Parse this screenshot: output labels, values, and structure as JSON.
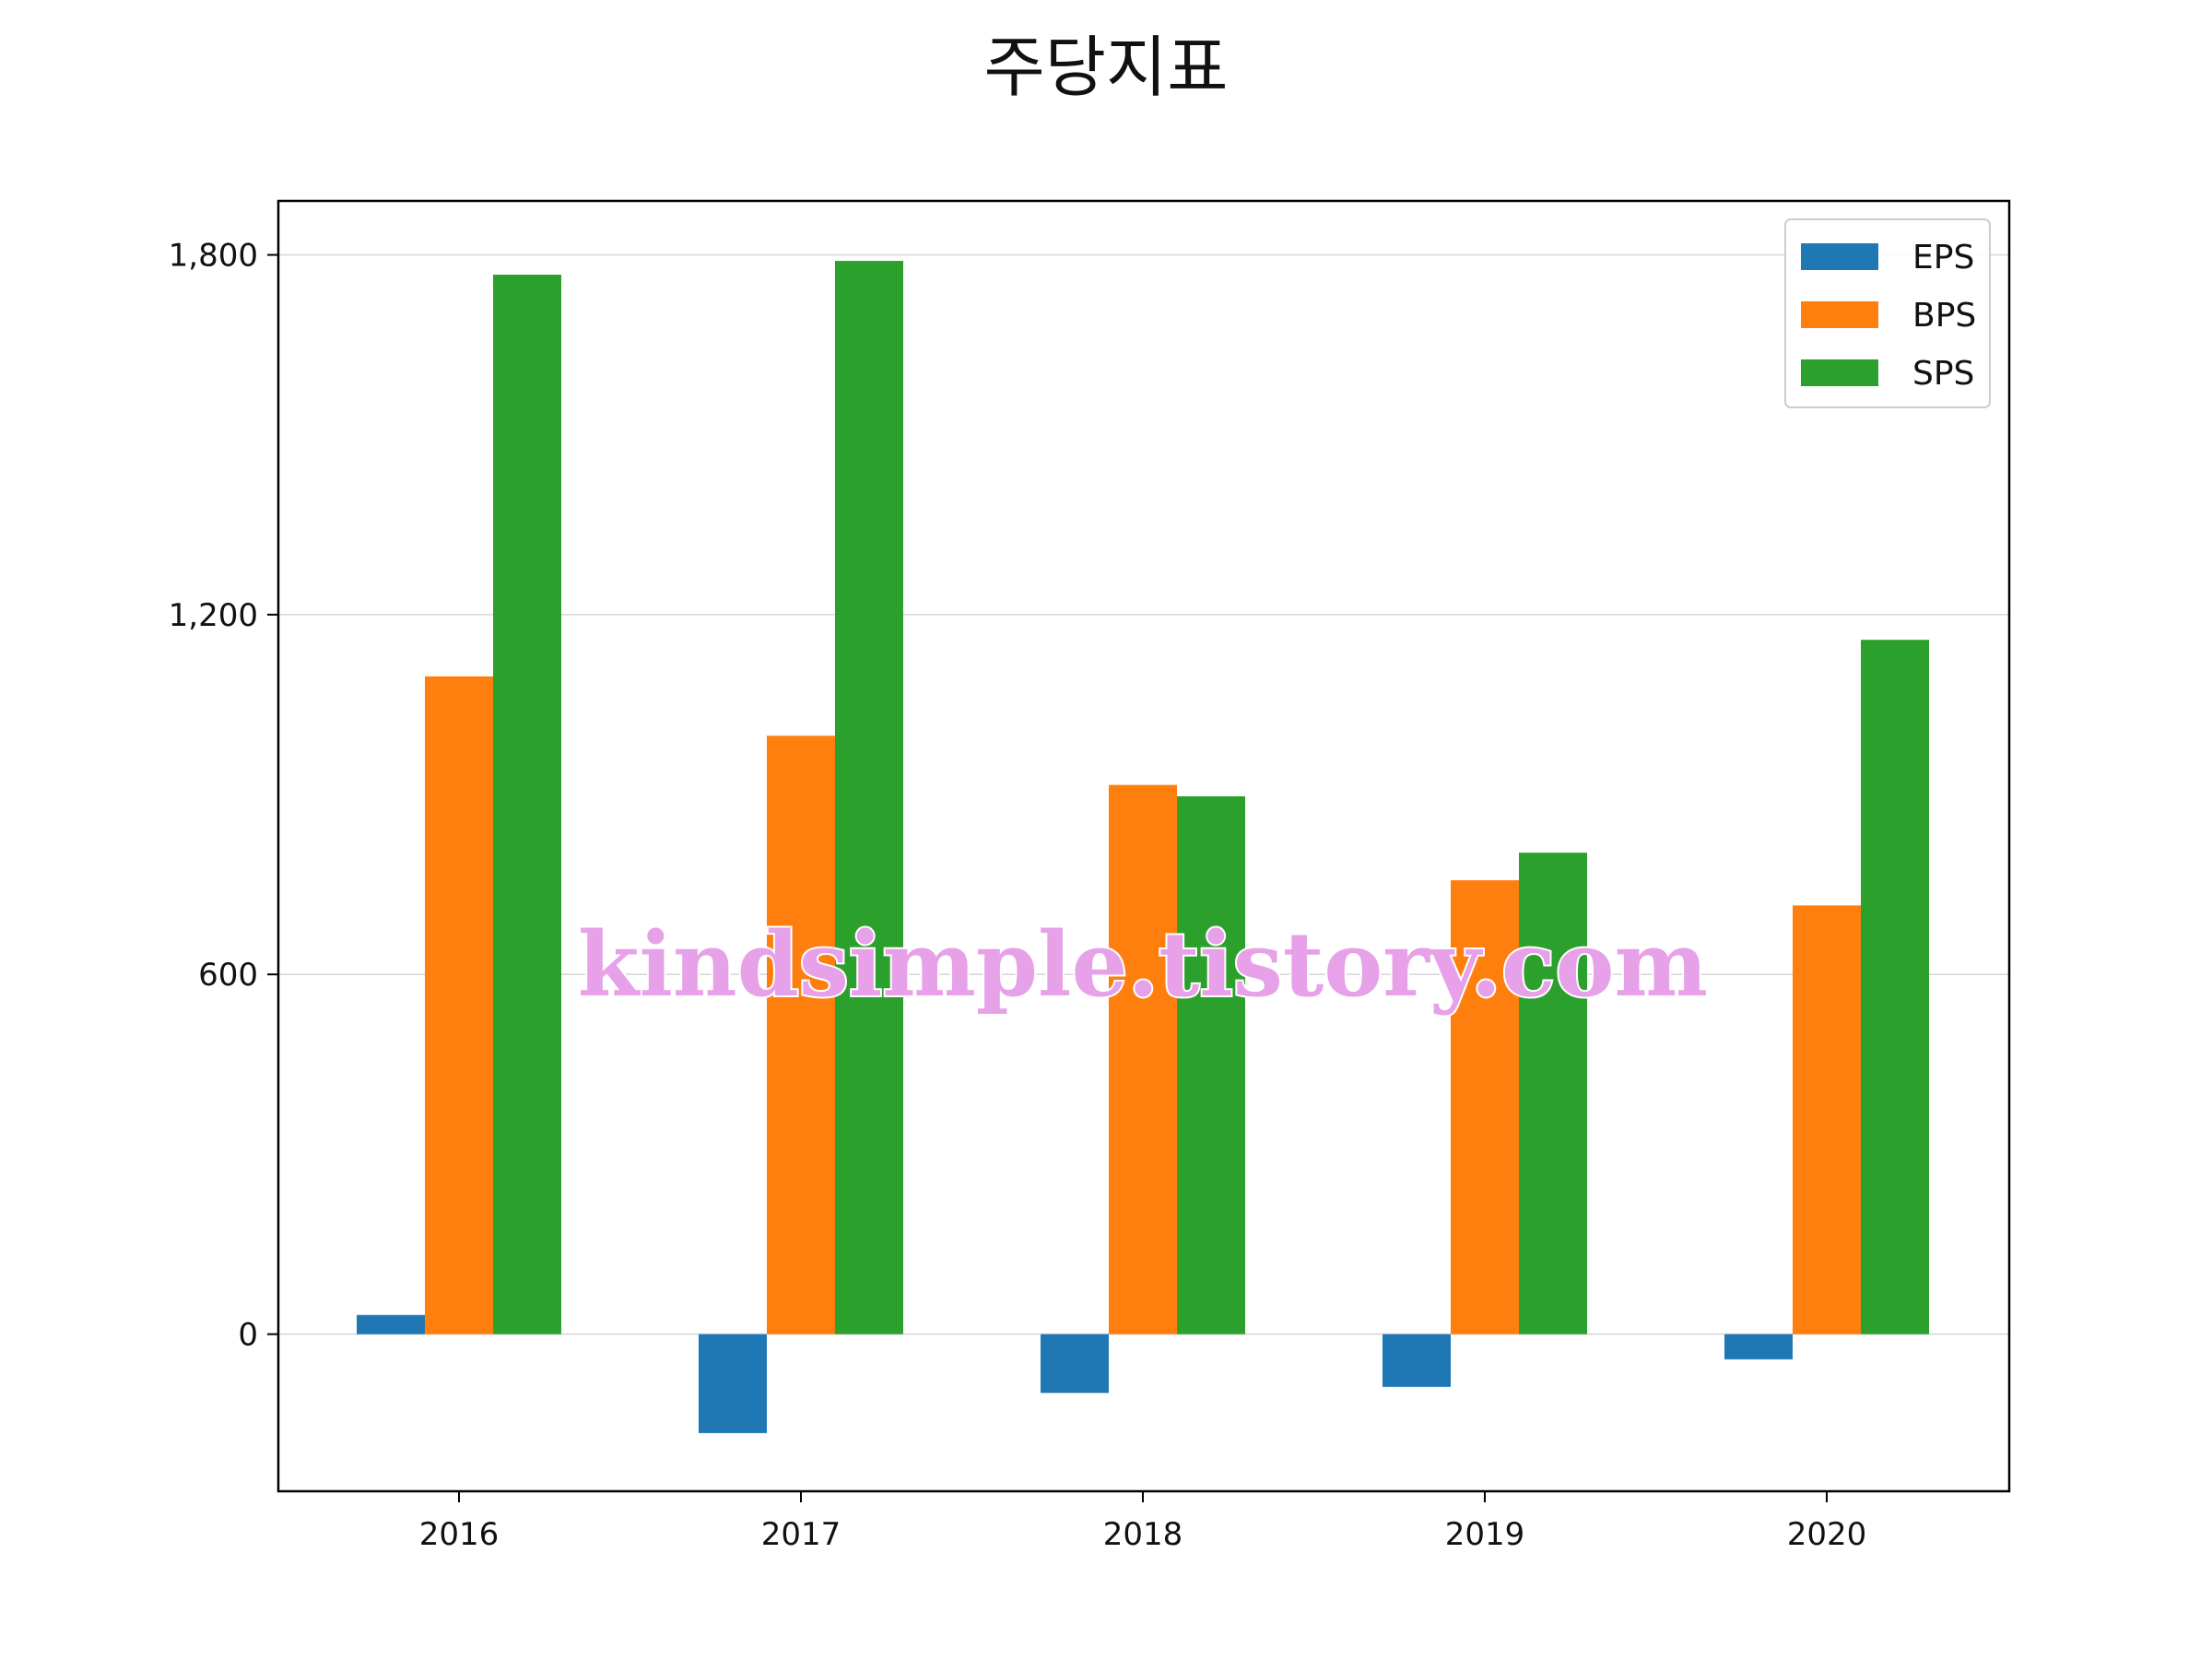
{
  "chart_data": {
    "type": "bar",
    "title": "주당지표",
    "xlabel": "",
    "ylabel": "",
    "categories": [
      "2016",
      "2017",
      "2018",
      "2019",
      "2020"
    ],
    "series": [
      {
        "name": "EPS",
        "color": "#1f77b4",
        "values": [
          32,
          -165,
          -98,
          -88,
          -42
        ]
      },
      {
        "name": "BPS",
        "color": "#ff7f0e",
        "values": [
          1097,
          998,
          916,
          757,
          715
        ]
      },
      {
        "name": "SPS",
        "color": "#2ca02c",
        "values": [
          1767,
          1790,
          897,
          803,
          1158
        ]
      }
    ],
    "ylim": [
      -262,
      1890
    ],
    "yticks": [
      0,
      600,
      1200,
      1800
    ],
    "ytick_labels": [
      "0",
      "600",
      "1,200",
      "1,800"
    ],
    "grid": "y",
    "legend": "top-right"
  },
  "watermark": "kindsimple.tistory.com"
}
